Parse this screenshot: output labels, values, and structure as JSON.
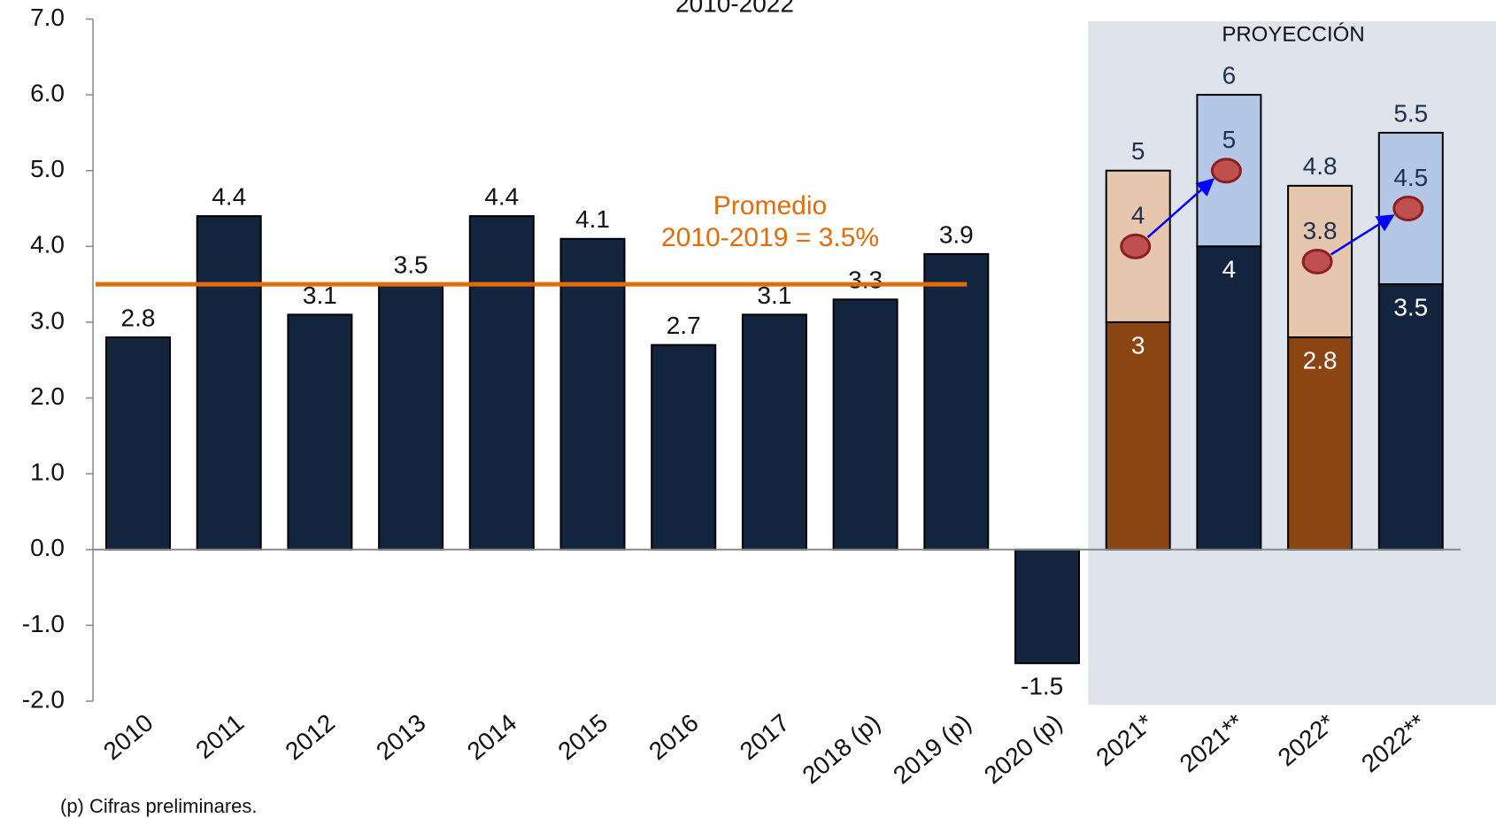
{
  "chart_data": {
    "type": "bar",
    "title": "2010-2022",
    "categories": [
      "2010",
      "2011",
      "2012",
      "2013",
      "2014",
      "2015",
      "2016",
      "2017",
      "2018 (p)",
      "2019 (p)",
      "2020 (p)",
      "2021*",
      "2021**",
      "2022*",
      "2022**"
    ],
    "values": [
      2.8,
      4.4,
      3.1,
      3.5,
      4.4,
      4.1,
      2.7,
      3.1,
      3.3,
      3.9,
      -1.5,
      null,
      null,
      null,
      null
    ],
    "color": "#13243f",
    "projection": {
      "label": "PROYECCIÓN",
      "base": [
        null,
        null,
        null,
        null,
        null,
        null,
        null,
        null,
        null,
        null,
        null,
        3.0,
        4.0,
        2.8,
        3.5
      ],
      "high": [
        null,
        null,
        null,
        null,
        null,
        null,
        null,
        null,
        null,
        null,
        null,
        5.0,
        6.0,
        4.8,
        5.5
      ],
      "point": [
        null,
        null,
        null,
        null,
        null,
        null,
        null,
        null,
        null,
        null,
        null,
        4.0,
        5.0,
        3.8,
        4.5
      ],
      "base_colors": [
        "#8b4513",
        "#13243f",
        "#8b4513",
        "#13243f"
      ],
      "range_colors": [
        "#e6c6ad",
        "#b4c7e7",
        "#e6c6ad",
        "#b4c7e7"
      ],
      "point_color": "#c0504d",
      "arrow_color": "#0000ff",
      "shade": "#dfe4ec"
    },
    "average": {
      "value": 3.5,
      "lines": [
        "Promedio",
        "2010-2019 = 3.5%"
      ],
      "color": "#e36c0a"
    },
    "ylim": [
      -2,
      7
    ],
    "yticks": [
      {
        "value": -2,
        "label": "-2.0"
      },
      {
        "value": -1,
        "label": "-1.0"
      },
      {
        "value": 0,
        "label": "0.0"
      },
      {
        "value": 1,
        "label": "1.0"
      },
      {
        "value": 2,
        "label": "2.0"
      },
      {
        "value": 3,
        "label": "3.0"
      },
      {
        "value": 4,
        "label": "4.0"
      },
      {
        "value": 5,
        "label": "5.0"
      },
      {
        "value": 6,
        "label": "6.0"
      },
      {
        "value": 7,
        "label": "7.0"
      }
    ],
    "note": "(p) Cifras preliminares."
  }
}
